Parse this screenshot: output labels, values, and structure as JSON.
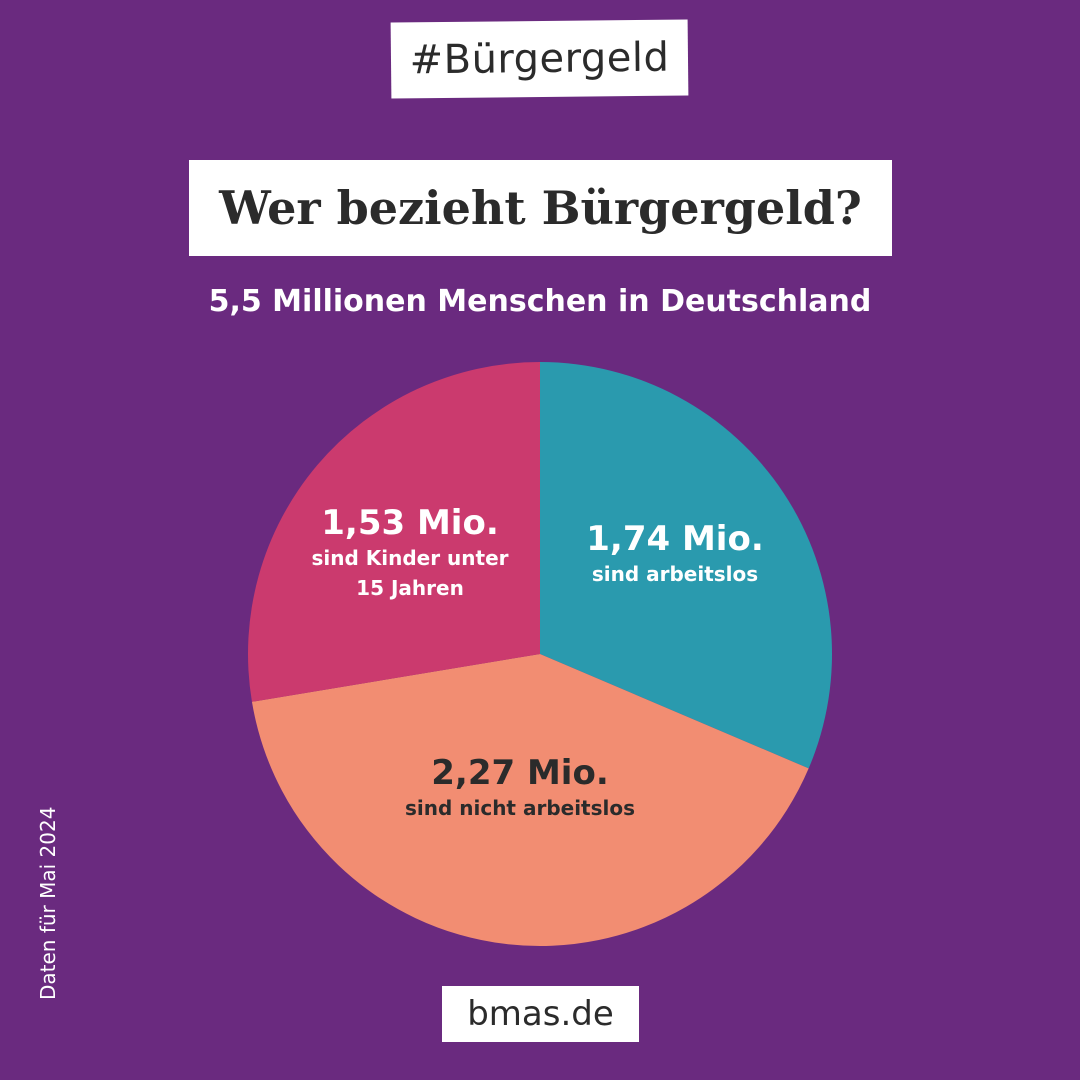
{
  "hashtag": "#Bürgergeld",
  "title": "Wer bezieht Bürgergeld?",
  "subtitle": "5,5 Millionen Menschen in Deutschland",
  "side_note": "Daten für Mai 2024",
  "footer": "bmas.de",
  "colors": {
    "background": "#6a2a7f",
    "arbeitslos": "#2a9aae",
    "nicht_arbeitslos": "#f28d72",
    "kinder": "#cb3a6e"
  },
  "chart_data": {
    "type": "pie",
    "total_label": "5,5 Millionen Menschen in Deutschland",
    "slices": [
      {
        "key": "arbeitslos",
        "value": 1.74,
        "value_label": "1,74 Mio.",
        "desc_lines": [
          "sind arbeitslos"
        ]
      },
      {
        "key": "nicht_arbeitslos",
        "value": 2.27,
        "value_label": "2,27 Mio.",
        "desc_lines": [
          "sind nicht arbeitslos"
        ]
      },
      {
        "key": "kinder",
        "value": 1.53,
        "value_label": "1,53 Mio.",
        "desc_lines": [
          "sind Kinder unter",
          "15 Jahren"
        ]
      }
    ],
    "start_angle": "12 o'clock",
    "direction": "clockwise"
  }
}
